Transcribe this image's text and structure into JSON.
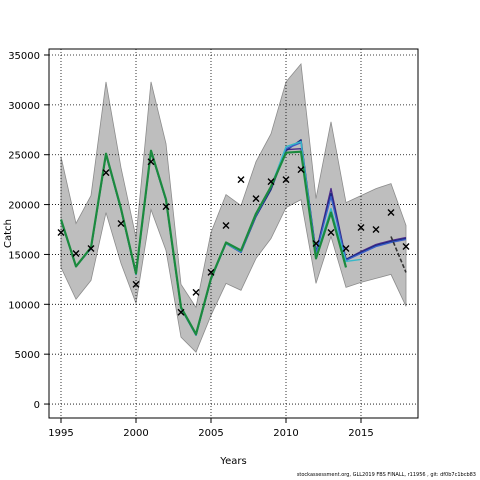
{
  "chart_data": {
    "type": "line",
    "xlabel": "Years",
    "ylabel": "Catch",
    "xlim": [
      1994.2,
      2018.8
    ],
    "ylim": [
      -1400,
      35600
    ],
    "xticks": [
      1995,
      2000,
      2005,
      2010,
      2015
    ],
    "yticks": [
      0,
      5000,
      10000,
      15000,
      20000,
      25000,
      30000,
      35000
    ],
    "grid": true,
    "colors": {
      "band": "#bebebe",
      "band_edge": "#8c8c8c",
      "primary": "#1b8a3e",
      "purple": "#4b2a8a",
      "navy": "#1a2a80",
      "blue": "#3a5ec8",
      "cyan": "#37b8c8",
      "projection": "#333333",
      "grid": "#000000"
    },
    "x": [
      1995,
      1996,
      1997,
      1998,
      1999,
      2000,
      2001,
      2002,
      2003,
      2004,
      2005,
      2006,
      2007,
      2008,
      2009,
      2010,
      2011,
      2012,
      2013,
      2014,
      2015,
      2016,
      2017,
      2018
    ],
    "band_upper": [
      24800,
      18100,
      20900,
      32300,
      23700,
      16700,
      32300,
      26100,
      12000,
      9700,
      17200,
      21000,
      19900,
      24300,
      27100,
      32300,
      34100,
      20600,
      28300,
      20200,
      20900,
      21600,
      22100,
      17900
    ],
    "band_lower": [
      13700,
      10500,
      12400,
      19200,
      14100,
      10100,
      19500,
      15400,
      6700,
      5200,
      8900,
      12100,
      11400,
      14600,
      16600,
      19700,
      20500,
      12100,
      16800,
      11700,
      12200,
      12600,
      13000,
      9800
    ],
    "observed": [
      17200,
      15100,
      15600,
      23200,
      18100,
      12000,
      24300,
      19800,
      9200,
      11200,
      13200,
      17900,
      22500,
      20600,
      22300,
      22500,
      23500,
      16100,
      17200,
      15600,
      17700,
      17500,
      19200,
      15800
    ],
    "series": [
      {
        "key": "purple",
        "values": [
          18400,
          13800,
          15600,
          25000,
          19500,
          13000,
          25300,
          20400,
          9600,
          6900,
          12500,
          16100,
          15300,
          18900,
          21600,
          25500,
          25600,
          15200,
          21600,
          14500,
          15300,
          16000,
          16400,
          16700
        ]
      },
      {
        "key": "navy",
        "values": [
          18400,
          13800,
          15600,
          25000,
          19500,
          13000,
          25300,
          20400,
          9600,
          6900,
          12500,
          16100,
          15200,
          18800,
          21500,
          25400,
          26500,
          15200,
          21100,
          14500,
          15200,
          15900,
          16300,
          16600
        ]
      },
      {
        "key": "blue",
        "values": [
          18400,
          13800,
          15600,
          25000,
          19500,
          13000,
          25300,
          20400,
          9600,
          6900,
          12500,
          16100,
          15200,
          18900,
          21700,
          25600,
          26200,
          15100,
          20800,
          14400,
          15100,
          15800,
          16200,
          16500
        ]
      },
      {
        "key": "cyan",
        "values": [
          18400,
          13800,
          15600,
          25000,
          19500,
          13000,
          25300,
          20400,
          9600,
          6900,
          12500,
          16100,
          15300,
          19000,
          21800,
          25800,
          26300,
          14800,
          19600,
          14300,
          14500,
          null,
          null,
          null
        ]
      },
      {
        "key": "primary",
        "values": [
          18500,
          13800,
          15700,
          25100,
          19600,
          13100,
          25400,
          20500,
          9700,
          7000,
          12600,
          16200,
          15400,
          19100,
          21800,
          25200,
          25300,
          14600,
          19200,
          13700,
          null,
          null,
          null,
          null
        ]
      },
      {
        "key": "projection",
        "dashed": true,
        "values": [
          null,
          null,
          null,
          null,
          null,
          null,
          null,
          null,
          null,
          null,
          null,
          null,
          null,
          null,
          null,
          null,
          null,
          null,
          null,
          null,
          null,
          null,
          16800,
          13200
        ]
      }
    ]
  },
  "footer": "stockassessment.org, GLL2019 FBS FINALL, r11956 , git: df0b7c1bcb83"
}
